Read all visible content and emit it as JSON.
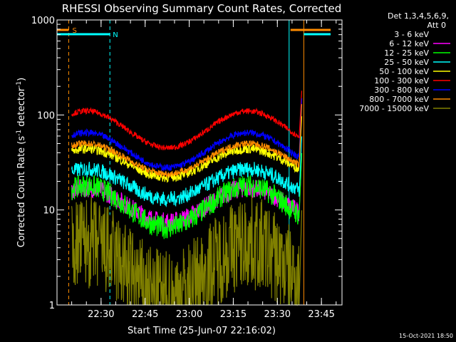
{
  "chart_data": {
    "type": "line",
    "title": "RHESSI Observing Summary Count Rates, Corrected",
    "xlabel": "Start Time (25-Jun-07 22:16:02)",
    "ylabel_main": "Corrected Count Rate (s",
    "ylabel_sup1": "-1",
    "ylabel_mid": " detector",
    "ylabel_sup2": "-1",
    "ylabel_end": ")",
    "y_scale": "log",
    "ylim": [
      1,
      1000
    ],
    "xlim_minutes_after_2216": [
      -1,
      96
    ],
    "y_ticks": [
      {
        "value": 1,
        "label": "1"
      },
      {
        "value": 10,
        "label": "10"
      },
      {
        "value": 100,
        "label": "100"
      },
      {
        "value": 1000,
        "label": "1000"
      }
    ],
    "x_ticks": [
      {
        "value": 14,
        "label": "22:30"
      },
      {
        "value": 29,
        "label": "22:45"
      },
      {
        "value": 44,
        "label": "23:00"
      },
      {
        "value": 59,
        "label": "23:15"
      },
      {
        "value": 74,
        "label": "23:30"
      },
      {
        "value": 89,
        "label": "23:45"
      }
    ],
    "legend_header": [
      "Det 1,3,4,5,6,9,",
      "Att 0"
    ],
    "series": [
      {
        "name": "3 - 6 keV",
        "color": "#000000",
        "lo": 1.4,
        "hi": 6.5,
        "noise": 0.55
      },
      {
        "name": "6 - 12 keV",
        "color": "#ff00ff",
        "lo": 7.5,
        "hi": 17,
        "noise": 0.1
      },
      {
        "name": "12 - 25 keV",
        "color": "#00ff00",
        "lo": 6.5,
        "hi": 18,
        "noise": 0.12
      },
      {
        "name": "25 - 50 keV",
        "color": "#00ffff",
        "lo": 13,
        "hi": 27,
        "noise": 0.08
      },
      {
        "name": "50 - 100 keV",
        "color": "#ffff00",
        "lo": 22,
        "hi": 44,
        "noise": 0.05
      },
      {
        "name": "100 - 300 keV",
        "color": "#ff0000",
        "lo": 45,
        "hi": 110,
        "noise": 0.03
      },
      {
        "name": "300 - 800 keV",
        "color": "#0000ff",
        "lo": 28,
        "hi": 65,
        "noise": 0.035
      },
      {
        "name": "800 - 7000 keV",
        "color": "#ff8c00",
        "lo": 24,
        "hi": 50,
        "noise": 0.035
      },
      {
        "name": "7000 - 15000 keV",
        "color": "#808000",
        "lo": 1.2,
        "hi": 4.5,
        "noise": 0.5
      }
    ],
    "flags": [
      {
        "label": "S",
        "color": "#ff8c00",
        "x_start": -1,
        "x_end": 3
      },
      {
        "label": "N",
        "color": "#00ffff",
        "x_start": -1,
        "x_end": 17
      }
    ],
    "intervals": [
      {
        "color": "#00ffff",
        "x_start": 17,
        "x_end": 78
      },
      {
        "color": "#ff8c00",
        "x_start": 3,
        "x_end": 83
      }
    ],
    "timestamp": "15-Oct-2021 18:50"
  }
}
